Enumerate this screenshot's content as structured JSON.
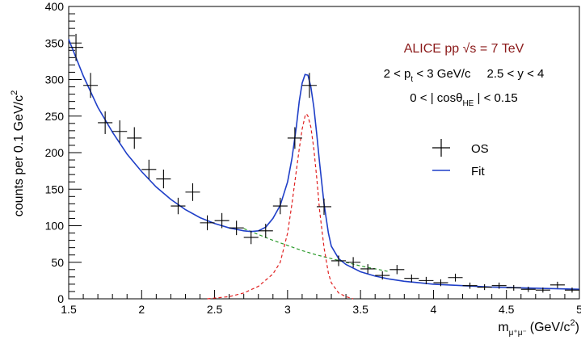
{
  "chart_data": {
    "type": "scatter",
    "title": "",
    "xlabel": "m",
    "xlabel_sub": "μ⁺μ⁻",
    "xlabel_unit": "(GeV/c",
    "xlabel_unit_sup": "2",
    "xlabel_unit_close": ")",
    "ylabel": "counts per 0.1 GeV/c",
    "ylabel_sup": "2",
    "xlim": [
      1.5,
      5.0
    ],
    "ylim": [
      0,
      400
    ],
    "xticks": [
      1.5,
      2,
      2.5,
      3,
      3.5,
      4,
      4.5,
      5
    ],
    "xtick_labels": [
      "1.5",
      "2",
      "2.5",
      "3",
      "3.5",
      "4",
      "4.5",
      "5"
    ],
    "yticks": [
      0,
      50,
      100,
      150,
      200,
      250,
      300,
      350,
      400
    ],
    "ytick_labels": [
      "0",
      "50",
      "100",
      "150",
      "200",
      "250",
      "300",
      "350",
      "400"
    ],
    "grid": false,
    "legend_position": "right",
    "annotations": {
      "line1": "ALICE  pp  √s = 7 TeV",
      "line2a": "2 < p",
      "line2a_sub": "t",
      "line2b": " < 3 GeV/c",
      "line2c": "2.5 < y < 4",
      "line3a": "0 < | cosθ",
      "line3a_sub": "HE",
      "line3b": " | < 0.15"
    },
    "series": [
      {
        "name": "OS",
        "kind": "data",
        "x": [
          1.55,
          1.65,
          1.75,
          1.85,
          1.95,
          2.05,
          2.15,
          2.25,
          2.35,
          2.45,
          2.55,
          2.65,
          2.75,
          2.85,
          2.95,
          3.05,
          3.15,
          3.25,
          3.35,
          3.45,
          3.55,
          3.65,
          3.75,
          3.85,
          3.95,
          4.05,
          4.15,
          4.25,
          4.35,
          4.45,
          4.55,
          4.65,
          4.75,
          4.85,
          4.95
        ],
        "y": [
          344,
          292,
          241,
          229,
          220,
          177,
          164,
          127,
          146,
          104,
          107,
          97,
          84,
          93,
          127,
          220,
          292,
          126,
          52,
          50,
          41,
          32,
          40,
          28,
          25,
          22,
          29,
          18,
          16,
          18,
          15,
          13,
          12,
          19,
          12
        ],
        "color": "#000000"
      },
      {
        "name": "Fit",
        "kind": "line",
        "color": "#1f3fc8",
        "x": [
          1.5,
          1.6,
          1.7,
          1.8,
          1.9,
          2.0,
          2.1,
          2.2,
          2.3,
          2.4,
          2.5,
          2.6,
          2.7,
          2.75,
          2.8,
          2.85,
          2.9,
          2.95,
          3.0,
          3.03,
          3.06,
          3.08,
          3.1,
          3.12,
          3.14,
          3.16,
          3.18,
          3.2,
          3.22,
          3.25,
          3.28,
          3.3,
          3.35,
          3.4,
          3.5,
          3.6,
          3.7,
          3.8,
          3.9,
          4.0,
          4.2,
          4.4,
          4.6,
          4.8,
          5.0
        ],
        "y": [
          355,
          305,
          262,
          228,
          198,
          174,
          153,
          136,
          122,
          111,
          103,
          97,
          93,
          92,
          93,
          98,
          110,
          128,
          160,
          192,
          235,
          270,
          295,
          307,
          306,
          290,
          262,
          225,
          185,
          130,
          90,
          72,
          55,
          47,
          37,
          31,
          27,
          24,
          22,
          20,
          18,
          16,
          15,
          14,
          13
        ]
      },
      {
        "name": "",
        "kind": "background",
        "color": "#2a9a2a",
        "x": [
          2.7,
          2.8,
          2.9,
          3.0,
          3.1,
          3.2,
          3.3,
          3.4,
          3.5,
          3.6,
          3.7
        ],
        "y": [
          96,
          88,
          80,
          73,
          66,
          60,
          55,
          50,
          45,
          41,
          37
        ]
      },
      {
        "name": "",
        "kind": "signal",
        "color": "#e02020",
        "x": [
          2.45,
          2.6,
          2.7,
          2.8,
          2.9,
          2.95,
          3.0,
          3.03,
          3.06,
          3.08,
          3.1,
          3.12,
          3.13,
          3.14,
          3.16,
          3.18,
          3.2,
          3.22,
          3.25,
          3.28,
          3.3,
          3.35,
          3.4,
          3.45
        ],
        "y": [
          0,
          3,
          8,
          17,
          34,
          50,
          90,
          130,
          175,
          205,
          232,
          250,
          253,
          250,
          235,
          205,
          165,
          120,
          70,
          35,
          22,
          8,
          3,
          0
        ]
      }
    ]
  }
}
